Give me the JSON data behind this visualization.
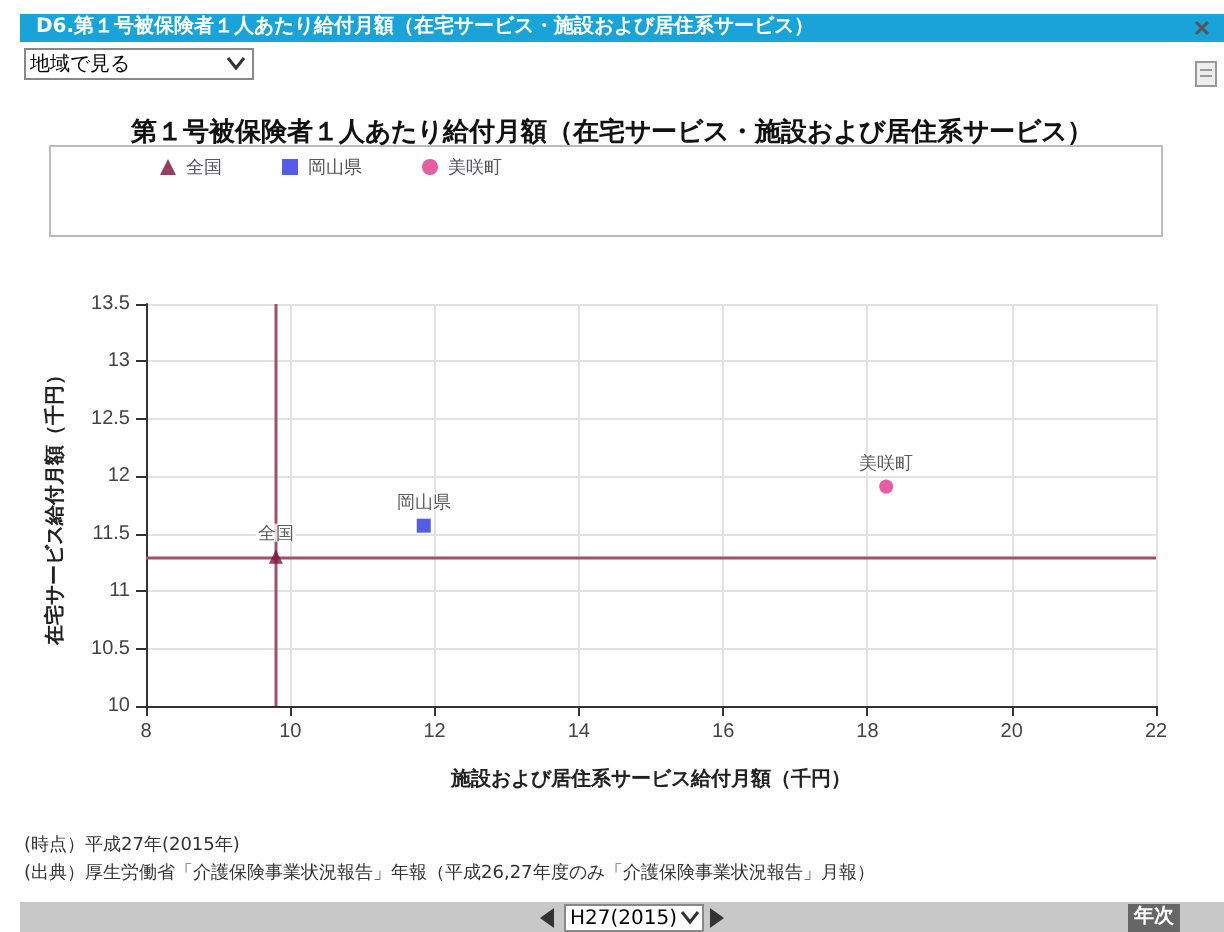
{
  "chart_data": {
    "type": "scatter",
    "title": "第１号被保険者１人あたり給付月額（在宅サービス・施設および居住系サービス）",
    "xlabel": "施設および居住系サービス給付月額（千円）",
    "ylabel": "在宅サービス給付月額（千円）",
    "series": [
      {
        "name": "全国",
        "color": "#7a1038",
        "marker": "triangle",
        "x": [
          9.8
        ],
        "values": [
          11.3
        ]
      },
      {
        "name": "岡山県",
        "color": "#2a35e0",
        "marker": "square",
        "x": [
          11.85
        ],
        "values": [
          11.57
        ]
      },
      {
        "name": "美咲町",
        "color": "#e0358a",
        "marker": "circle",
        "x": [
          18.26
        ],
        "values": [
          11.91
        ]
      }
    ],
    "xlim": [
      8,
      22
    ],
    "xticks": [
      8,
      10,
      12,
      14,
      16,
      18,
      20,
      22
    ],
    "ylim": [
      10,
      13.5
    ],
    "yticks": [
      10,
      10.5,
      11,
      11.5,
      12,
      12.5,
      13,
      13.5
    ],
    "ref_lines": [
      {
        "axis": "x",
        "value": 9.8,
        "color": "#a0506e"
      },
      {
        "axis": "y",
        "value": 11.3,
        "color": "#a0506e"
      }
    ],
    "grid": true,
    "legend": "top left",
    "annotations": [
      "D6.第１号被保険者１人あたり給付月額（在宅サービス・施設および居住系サービス）",
      "地域で見る",
      "(時点）平成27年(2015年)",
      "(出典）厚生労働省「介護保険事業状況報告」年報（平成26,27年度のみ「介護保険事業状況報告」月報）",
      "H27(2015)",
      "年次"
    ]
  }
}
